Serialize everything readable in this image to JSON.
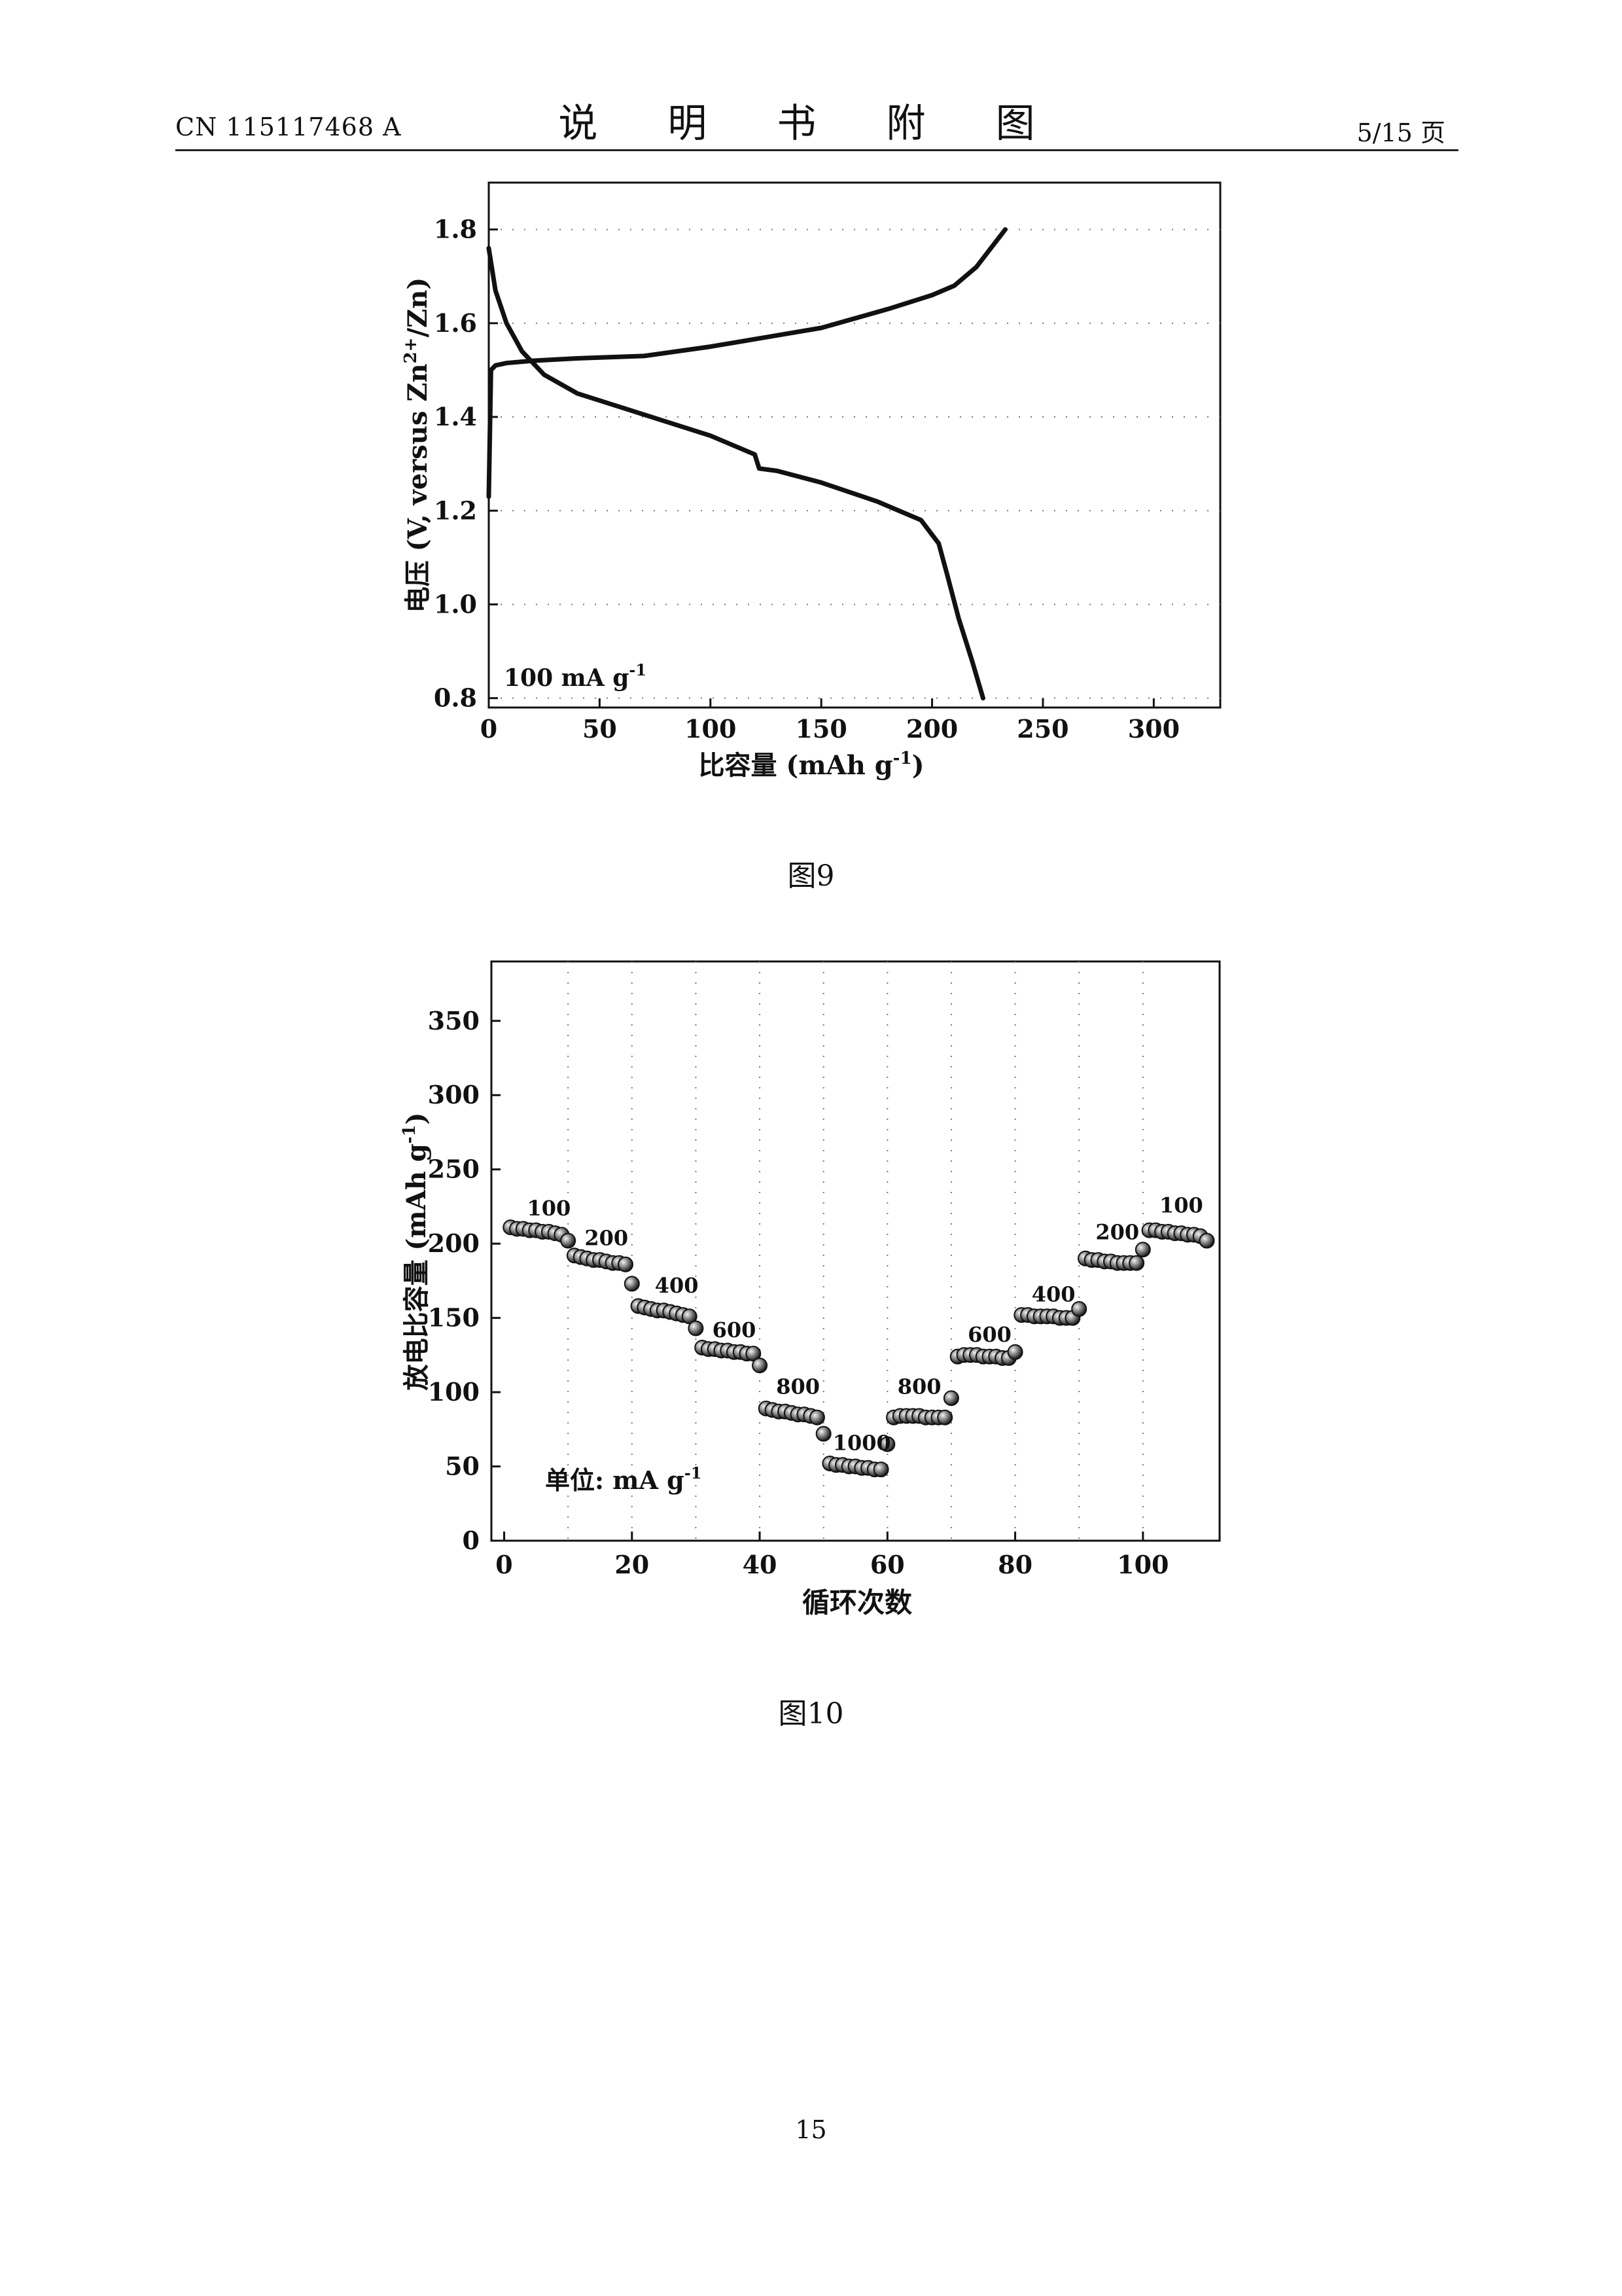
{
  "header": {
    "doc_number": "CN 115117468 A",
    "section_title": "说 明 书 附 图",
    "page_indicator": "5/15 页"
  },
  "figures": [
    {
      "caption": "图9",
      "annotation": "100 mA g",
      "annotation_sup": "-1",
      "xlabel_main": "比容量 (mAh g",
      "xlabel_sup": "-1",
      "xlabel_end": ")",
      "ylabel_main": "电压 (V, versus Zn",
      "ylabel_sup": "2+",
      "ylabel_end": "/Zn)"
    },
    {
      "caption": "图10",
      "annotation": "单位: mA g",
      "annotation_sup": "-1",
      "xlabel": "循环次数",
      "ylabel_main": "放电比容量 (mAh g",
      "ylabel_sup": "-1",
      "ylabel_end": ")"
    }
  ],
  "page_number": "15",
  "chart_data": [
    {
      "type": "line",
      "title": "",
      "xlim": [
        0,
        330
      ],
      "ylim": [
        0.78,
        1.9
      ],
      "x_ticks": [
        "0",
        "50",
        "100",
        "150",
        "200",
        "250",
        "300"
      ],
      "y_ticks": [
        "0.8",
        "1.0",
        "1.2",
        "1.4",
        "1.6",
        "1.8"
      ],
      "grid": true,
      "series": [
        {
          "x": [
            0,
            1,
            3,
            8,
            20,
            40,
            70,
            100,
            125,
            150,
            180,
            200,
            210,
            220,
            233
          ],
          "y": [
            1.23,
            1.5,
            1.51,
            1.515,
            1.52,
            1.525,
            1.53,
            1.55,
            1.57,
            1.59,
            1.63,
            1.66,
            1.68,
            1.72,
            1.8
          ]
        },
        {
          "x": [
            0,
            3,
            8,
            15,
            25,
            40,
            60,
            80,
            100,
            115,
            120,
            122,
            130,
            150,
            175,
            195,
            203,
            207,
            212,
            218,
            223
          ],
          "y": [
            1.76,
            1.67,
            1.6,
            1.54,
            1.49,
            1.45,
            1.42,
            1.39,
            1.36,
            1.33,
            1.32,
            1.29,
            1.285,
            1.26,
            1.22,
            1.18,
            1.13,
            1.06,
            0.97,
            0.88,
            0.8
          ]
        }
      ]
    },
    {
      "type": "scatter",
      "title": "",
      "xlim": [
        -2,
        112
      ],
      "ylim": [
        0,
        390
      ],
      "x_ticks": [
        "0",
        "20",
        "40",
        "60",
        "80",
        "100"
      ],
      "y_ticks": [
        "0",
        "50",
        "100",
        "150",
        "200",
        "250",
        "300",
        "350"
      ],
      "grid": true,
      "vlines": [
        10,
        20,
        30,
        40,
        50,
        60,
        70,
        80,
        90,
        100
      ],
      "points": {
        "x": [
          1,
          2,
          3,
          4,
          5,
          6,
          7,
          8,
          9,
          10,
          11,
          12,
          13,
          14,
          15,
          16,
          17,
          18,
          19,
          20,
          21,
          22,
          23,
          24,
          25,
          26,
          27,
          28,
          29,
          30,
          31,
          32,
          33,
          34,
          35,
          36,
          37,
          38,
          39,
          40,
          41,
          42,
          43,
          44,
          45,
          46,
          47,
          48,
          49,
          50,
          51,
          52,
          53,
          54,
          55,
          56,
          57,
          58,
          59,
          60,
          61,
          62,
          63,
          64,
          65,
          66,
          67,
          68,
          69,
          70,
          71,
          72,
          73,
          74,
          75,
          76,
          77,
          78,
          79,
          80,
          81,
          82,
          83,
          84,
          85,
          86,
          87,
          88,
          89,
          90,
          91,
          92,
          93,
          94,
          95,
          96,
          97,
          98,
          99,
          100,
          101,
          102,
          103,
          104,
          105,
          106,
          107,
          108,
          109,
          110
        ],
        "y": [
          211,
          210,
          210,
          209,
          209,
          208,
          208,
          207,
          206,
          202,
          192,
          191,
          190,
          189,
          189,
          188,
          187,
          187,
          186,
          173,
          158,
          157,
          156,
          155,
          155,
          154,
          153,
          152,
          151,
          143,
          130,
          129,
          129,
          128,
          128,
          127,
          127,
          126,
          126,
          118,
          89,
          88,
          87,
          87,
          86,
          85,
          85,
          84,
          83,
          72,
          52,
          51,
          51,
          50,
          50,
          49,
          49,
          48,
          48,
          65,
          83,
          84,
          84,
          84,
          84,
          83,
          83,
          83,
          83,
          96,
          124,
          125,
          125,
          125,
          124,
          124,
          124,
          123,
          123,
          127,
          152,
          152,
          151,
          151,
          151,
          151,
          150,
          150,
          150,
          156,
          190,
          189,
          189,
          188,
          188,
          187,
          187,
          187,
          187,
          196,
          209,
          209,
          208,
          208,
          207,
          207,
          206,
          206,
          205,
          202
        ]
      },
      "segment_labels": [
        {
          "text": "100",
          "x": 7,
          "y": 219
        },
        {
          "text": "200",
          "x": 16,
          "y": 199
        },
        {
          "text": "400",
          "x": 27,
          "y": 167
        },
        {
          "text": "600",
          "x": 36,
          "y": 137
        },
        {
          "text": "800",
          "x": 46,
          "y": 99
        },
        {
          "text": "1000",
          "x": 56,
          "y": 61
        },
        {
          "text": "800",
          "x": 65,
          "y": 99
        },
        {
          "text": "600",
          "x": 76,
          "y": 134
        },
        {
          "text": "400",
          "x": 86,
          "y": 161
        },
        {
          "text": "200",
          "x": 96,
          "y": 203
        },
        {
          "text": "100",
          "x": 106,
          "y": 221
        }
      ]
    }
  ]
}
